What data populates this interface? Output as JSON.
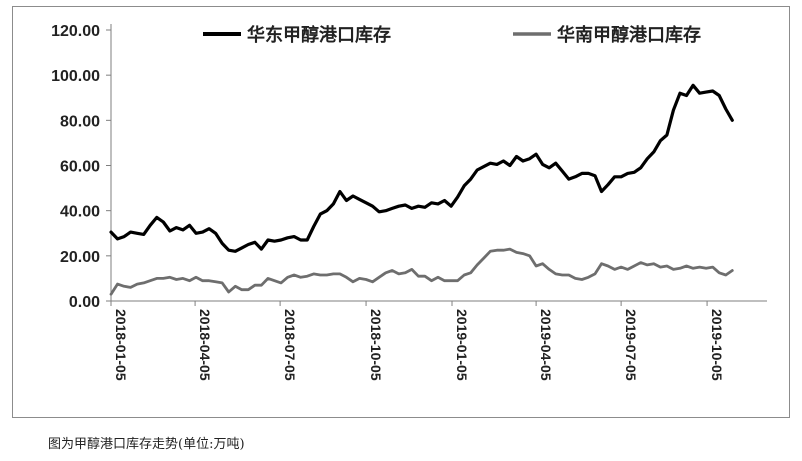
{
  "caption": "图为甲醇港口库存走势(单位:万吨)",
  "chart_data": {
    "type": "line",
    "title": "",
    "xlabel": "",
    "ylabel": "",
    "ylim": [
      0,
      120
    ],
    "yticks": [
      "0.00",
      "20.00",
      "40.00",
      "60.00",
      "80.00",
      "100.00",
      "120.00"
    ],
    "xticks": [
      "2018-01-05",
      "2018-04-05",
      "2018-07-05",
      "2018-10-05",
      "2019-01-05",
      "2019-04-05",
      "2019-07-05",
      "2019-10-05"
    ],
    "x_range": [
      "2018-01-05",
      "2019-12-06"
    ],
    "grid": false,
    "legend": "top",
    "series": [
      {
        "name": "华东甲醇港口库存",
        "color": "#000000",
        "points": [
          [
            "2018-01-05",
            30.5
          ],
          [
            "2018-01-12",
            27.5
          ],
          [
            "2018-01-19",
            28.5
          ],
          [
            "2018-01-26",
            30.5
          ],
          [
            "2018-02-02",
            30.0
          ],
          [
            "2018-02-09",
            29.5
          ],
          [
            "2018-02-16",
            33.5
          ],
          [
            "2018-02-23",
            37.0
          ],
          [
            "2018-03-02",
            35.0
          ],
          [
            "2018-03-09",
            31.0
          ],
          [
            "2018-03-16",
            32.5
          ],
          [
            "2018-03-23",
            31.5
          ],
          [
            "2018-03-30",
            33.5
          ],
          [
            "2018-04-06",
            30.0
          ],
          [
            "2018-04-13",
            30.5
          ],
          [
            "2018-04-20",
            32.0
          ],
          [
            "2018-04-27",
            30.0
          ],
          [
            "2018-05-04",
            25.5
          ],
          [
            "2018-05-11",
            22.5
          ],
          [
            "2018-05-18",
            22.0
          ],
          [
            "2018-05-25",
            23.5
          ],
          [
            "2018-06-01",
            25.0
          ],
          [
            "2018-06-08",
            26.0
          ],
          [
            "2018-06-15",
            23.0
          ],
          [
            "2018-06-22",
            27.0
          ],
          [
            "2018-06-29",
            26.5
          ],
          [
            "2018-07-06",
            27.0
          ],
          [
            "2018-07-13",
            28.0
          ],
          [
            "2018-07-20",
            28.5
          ],
          [
            "2018-07-27",
            27.0
          ],
          [
            "2018-08-03",
            27.0
          ],
          [
            "2018-08-10",
            33.0
          ],
          [
            "2018-08-17",
            38.5
          ],
          [
            "2018-08-24",
            40.0
          ],
          [
            "2018-08-31",
            43.0
          ],
          [
            "2018-09-07",
            48.5
          ],
          [
            "2018-09-14",
            44.5
          ],
          [
            "2018-09-21",
            46.5
          ],
          [
            "2018-09-28",
            45.0
          ],
          [
            "2018-10-05",
            43.5
          ],
          [
            "2018-10-12",
            42.0
          ],
          [
            "2018-10-19",
            39.5
          ],
          [
            "2018-10-26",
            40.0
          ],
          [
            "2018-11-02",
            41.0
          ],
          [
            "2018-11-09",
            42.0
          ],
          [
            "2018-11-16",
            42.5
          ],
          [
            "2018-11-23",
            41.0
          ],
          [
            "2018-11-30",
            42.0
          ],
          [
            "2018-12-07",
            41.5
          ],
          [
            "2018-12-14",
            43.5
          ],
          [
            "2018-12-21",
            43.0
          ],
          [
            "2018-12-28",
            44.5
          ],
          [
            "2019-01-04",
            42.0
          ],
          [
            "2019-01-11",
            46.0
          ],
          [
            "2019-01-18",
            51.0
          ],
          [
            "2019-01-25",
            54.0
          ],
          [
            "2019-02-01",
            58.0
          ],
          [
            "2019-02-08",
            59.5
          ],
          [
            "2019-02-15",
            61.0
          ],
          [
            "2019-02-22",
            60.5
          ],
          [
            "2019-03-01",
            62.0
          ],
          [
            "2019-03-08",
            60.0
          ],
          [
            "2019-03-15",
            64.0
          ],
          [
            "2019-03-22",
            62.0
          ],
          [
            "2019-03-29",
            63.0
          ],
          [
            "2019-04-05",
            65.0
          ],
          [
            "2019-04-12",
            60.5
          ],
          [
            "2019-04-19",
            59.0
          ],
          [
            "2019-04-26",
            61.0
          ],
          [
            "2019-05-03",
            57.5
          ],
          [
            "2019-05-10",
            54.0
          ],
          [
            "2019-05-17",
            55.0
          ],
          [
            "2019-05-24",
            56.5
          ],
          [
            "2019-05-31",
            56.5
          ],
          [
            "2019-06-07",
            55.5
          ],
          [
            "2019-06-14",
            48.5
          ],
          [
            "2019-06-21",
            51.5
          ],
          [
            "2019-06-28",
            55.0
          ],
          [
            "2019-07-05",
            55.0
          ],
          [
            "2019-07-12",
            56.5
          ],
          [
            "2019-07-19",
            57.0
          ],
          [
            "2019-07-26",
            59.0
          ],
          [
            "2019-08-02",
            63.0
          ],
          [
            "2019-08-09",
            66.0
          ],
          [
            "2019-08-16",
            71.0
          ],
          [
            "2019-08-23",
            73.5
          ],
          [
            "2019-08-30",
            84.5
          ],
          [
            "2019-09-06",
            92.0
          ],
          [
            "2019-09-13",
            91.0
          ],
          [
            "2019-09-20",
            95.5
          ],
          [
            "2019-09-27",
            92.0
          ],
          [
            "2019-10-04",
            92.5
          ],
          [
            "2019-10-11",
            93.0
          ],
          [
            "2019-10-18",
            91.0
          ],
          [
            "2019-10-25",
            85.0
          ],
          [
            "2019-11-01",
            80.0
          ]
        ]
      },
      {
        "name": "华南甲醇港口库存",
        "color": "#6e6e6e",
        "points": [
          [
            "2018-01-05",
            3.0
          ],
          [
            "2018-01-12",
            7.5
          ],
          [
            "2018-01-19",
            6.5
          ],
          [
            "2018-01-26",
            6.0
          ],
          [
            "2018-02-02",
            7.5
          ],
          [
            "2018-02-09",
            8.0
          ],
          [
            "2018-02-16",
            9.0
          ],
          [
            "2018-02-23",
            10.0
          ],
          [
            "2018-03-02",
            10.0
          ],
          [
            "2018-03-09",
            10.5
          ],
          [
            "2018-03-16",
            9.5
          ],
          [
            "2018-03-23",
            10.0
          ],
          [
            "2018-03-30",
            9.0
          ],
          [
            "2018-04-06",
            10.5
          ],
          [
            "2018-04-13",
            9.0
          ],
          [
            "2018-04-20",
            9.0
          ],
          [
            "2018-04-27",
            8.5
          ],
          [
            "2018-05-04",
            8.0
          ],
          [
            "2018-05-11",
            4.0
          ],
          [
            "2018-05-18",
            6.5
          ],
          [
            "2018-05-25",
            5.0
          ],
          [
            "2018-06-01",
            5.0
          ],
          [
            "2018-06-08",
            7.0
          ],
          [
            "2018-06-15",
            7.0
          ],
          [
            "2018-06-22",
            10.0
          ],
          [
            "2018-06-29",
            9.0
          ],
          [
            "2018-07-06",
            8.0
          ],
          [
            "2018-07-13",
            10.5
          ],
          [
            "2018-07-20",
            11.5
          ],
          [
            "2018-07-27",
            10.5
          ],
          [
            "2018-08-03",
            11.0
          ],
          [
            "2018-08-10",
            12.0
          ],
          [
            "2018-08-17",
            11.5
          ],
          [
            "2018-08-24",
            11.5
          ],
          [
            "2018-08-31",
            12.0
          ],
          [
            "2018-09-07",
            12.0
          ],
          [
            "2018-09-14",
            10.5
          ],
          [
            "2018-09-21",
            8.5
          ],
          [
            "2018-09-28",
            10.0
          ],
          [
            "2018-10-05",
            9.5
          ],
          [
            "2018-10-12",
            8.5
          ],
          [
            "2018-10-19",
            10.5
          ],
          [
            "2018-10-26",
            12.5
          ],
          [
            "2018-11-02",
            13.5
          ],
          [
            "2018-11-09",
            12.0
          ],
          [
            "2018-11-16",
            12.5
          ],
          [
            "2018-11-23",
            14.0
          ],
          [
            "2018-11-30",
            11.0
          ],
          [
            "2018-12-07",
            11.0
          ],
          [
            "2018-12-14",
            9.0
          ],
          [
            "2018-12-21",
            10.5
          ],
          [
            "2018-12-28",
            9.0
          ],
          [
            "2019-01-04",
            9.0
          ],
          [
            "2019-01-11",
            9.0
          ],
          [
            "2019-01-18",
            11.5
          ],
          [
            "2019-01-25",
            12.5
          ],
          [
            "2019-02-01",
            16.0
          ],
          [
            "2019-02-08",
            19.0
          ],
          [
            "2019-02-15",
            22.0
          ],
          [
            "2019-02-22",
            22.5
          ],
          [
            "2019-03-01",
            22.5
          ],
          [
            "2019-03-08",
            23.0
          ],
          [
            "2019-03-15",
            21.5
          ],
          [
            "2019-03-22",
            21.0
          ],
          [
            "2019-03-29",
            20.0
          ],
          [
            "2019-04-05",
            15.5
          ],
          [
            "2019-04-12",
            16.5
          ],
          [
            "2019-04-19",
            14.0
          ],
          [
            "2019-04-26",
            12.0
          ],
          [
            "2019-05-03",
            11.5
          ],
          [
            "2019-05-10",
            11.5
          ],
          [
            "2019-05-17",
            10.0
          ],
          [
            "2019-05-24",
            9.5
          ],
          [
            "2019-05-31",
            10.5
          ],
          [
            "2019-06-07",
            12.0
          ],
          [
            "2019-06-14",
            16.5
          ],
          [
            "2019-06-21",
            15.5
          ],
          [
            "2019-06-28",
            14.0
          ],
          [
            "2019-07-05",
            15.0
          ],
          [
            "2019-07-12",
            14.0
          ],
          [
            "2019-07-19",
            15.5
          ],
          [
            "2019-07-26",
            17.0
          ],
          [
            "2019-08-02",
            16.0
          ],
          [
            "2019-08-09",
            16.5
          ],
          [
            "2019-08-16",
            15.0
          ],
          [
            "2019-08-23",
            15.5
          ],
          [
            "2019-08-30",
            14.0
          ],
          [
            "2019-09-06",
            14.5
          ],
          [
            "2019-09-13",
            15.5
          ],
          [
            "2019-09-20",
            14.5
          ],
          [
            "2019-09-27",
            15.0
          ],
          [
            "2019-10-04",
            14.5
          ],
          [
            "2019-10-11",
            15.0
          ],
          [
            "2019-10-18",
            12.5
          ],
          [
            "2019-10-25",
            11.5
          ],
          [
            "2019-11-01",
            13.5
          ]
        ]
      }
    ]
  }
}
